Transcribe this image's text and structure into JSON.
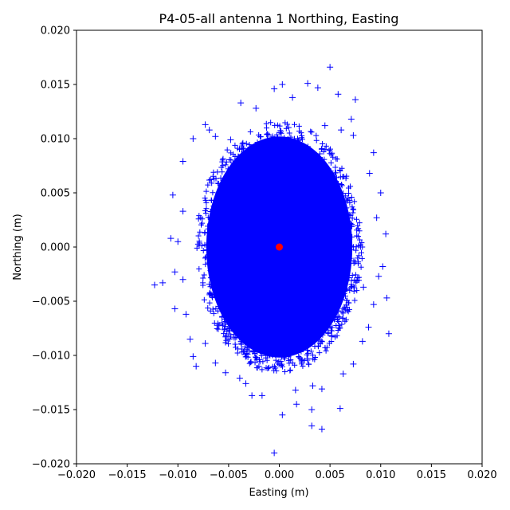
{
  "chart_data": {
    "type": "scatter",
    "title": "P4-05-all antenna 1 Northing, Easting",
    "xlabel": "Easting (m)",
    "ylabel": "Northing (m)",
    "xlim": [
      -0.02,
      0.02
    ],
    "ylim": [
      -0.02,
      0.02
    ],
    "x_ticks": [
      "−0.020",
      "−0.015",
      "−0.010",
      "−0.005",
      "0.000",
      "0.005",
      "0.010",
      "0.015",
      "0.020"
    ],
    "y_ticks": [
      "−0.020",
      "−0.015",
      "−0.010",
      "−0.005",
      "0.000",
      "0.005",
      "0.010",
      "0.015",
      "0.020"
    ],
    "x_tick_values": [
      -0.02,
      -0.015,
      -0.01,
      -0.005,
      0.0,
      0.005,
      0.01,
      0.015,
      0.02
    ],
    "y_tick_values": [
      -0.02,
      -0.015,
      -0.01,
      -0.005,
      0.0,
      0.005,
      0.01,
      0.015,
      0.02
    ],
    "grid": false,
    "legend": "none",
    "series": [
      {
        "marker": "plus",
        "color": "#0000ff",
        "points": [
          [
            0.005,
            0.0166
          ],
          [
            -0.0005,
            0.0146
          ],
          [
            0.0003,
            0.015
          ],
          [
            0.0028,
            0.0151
          ],
          [
            0.0038,
            0.0147
          ],
          [
            -0.0038,
            0.0133
          ],
          [
            0.0075,
            0.0136
          ],
          [
            0.0058,
            0.0141
          ],
          [
            0.0013,
            0.0138
          ],
          [
            -0.0023,
            0.0128
          ],
          [
            -0.0123,
            -0.0035
          ],
          [
            -0.0115,
            -0.0033
          ],
          [
            -0.0105,
            0.0048
          ],
          [
            -0.0103,
            -0.0057
          ],
          [
            -0.0092,
            -0.0062
          ],
          [
            -0.0088,
            -0.0085
          ],
          [
            -0.0085,
            -0.0101
          ],
          [
            -0.0082,
            -0.011
          ],
          [
            -0.0095,
            0.0033
          ],
          [
            -0.01,
            0.0005
          ],
          [
            -0.0107,
            0.0008
          ],
          [
            -0.0103,
            -0.0023
          ],
          [
            -0.0095,
            0.0079
          ],
          [
            -0.0085,
            0.01
          ],
          [
            -0.0073,
            0.0113
          ],
          [
            0.0093,
            0.0087
          ],
          [
            0.0089,
            0.0068
          ],
          [
            0.01,
            0.005
          ],
          [
            0.0096,
            0.0027
          ],
          [
            0.0105,
            0.0012
          ],
          [
            0.0102,
            -0.0018
          ],
          [
            0.0098,
            -0.0027
          ],
          [
            0.0106,
            -0.0047
          ],
          [
            0.0108,
            -0.008
          ],
          [
            0.0093,
            -0.0053
          ],
          [
            0.0088,
            -0.0074
          ],
          [
            0.0082,
            -0.0087
          ],
          [
            0.0073,
            -0.0108
          ],
          [
            0.0063,
            -0.0117
          ],
          [
            0.006,
            -0.0149
          ],
          [
            0.0042,
            -0.0131
          ],
          [
            0.0042,
            -0.0168
          ],
          [
            0.0032,
            -0.0165
          ],
          [
            0.0032,
            -0.015
          ],
          [
            0.0017,
            -0.0145
          ],
          [
            0.0003,
            -0.0155
          ],
          [
            -0.0005,
            -0.019
          ],
          [
            -0.0017,
            -0.0137
          ],
          [
            -0.0027,
            -0.0137
          ],
          [
            -0.0033,
            -0.0126
          ],
          [
            -0.0053,
            -0.0116
          ],
          [
            -0.0063,
            -0.0107
          ],
          [
            -0.0073,
            -0.0089
          ],
          [
            -0.0063,
            0.0102
          ],
          [
            -0.0048,
            0.0099
          ],
          [
            0.0073,
            0.0103
          ],
          [
            0.0061,
            0.0108
          ],
          [
            0.0045,
            0.0112
          ],
          [
            0.0083,
            -0.0037
          ],
          [
            -0.0095,
            -0.003
          ],
          [
            0.0033,
            -0.0128
          ],
          [
            0.0016,
            -0.0132
          ],
          [
            -0.0039,
            -0.0121
          ],
          [
            0.0071,
            0.0118
          ],
          [
            -0.0069,
            0.0108
          ]
        ]
      },
      {
        "marker": "circle",
        "color": "#ff0000",
        "points": [
          [
            0.0,
            0.0
          ]
        ]
      }
    ]
  }
}
